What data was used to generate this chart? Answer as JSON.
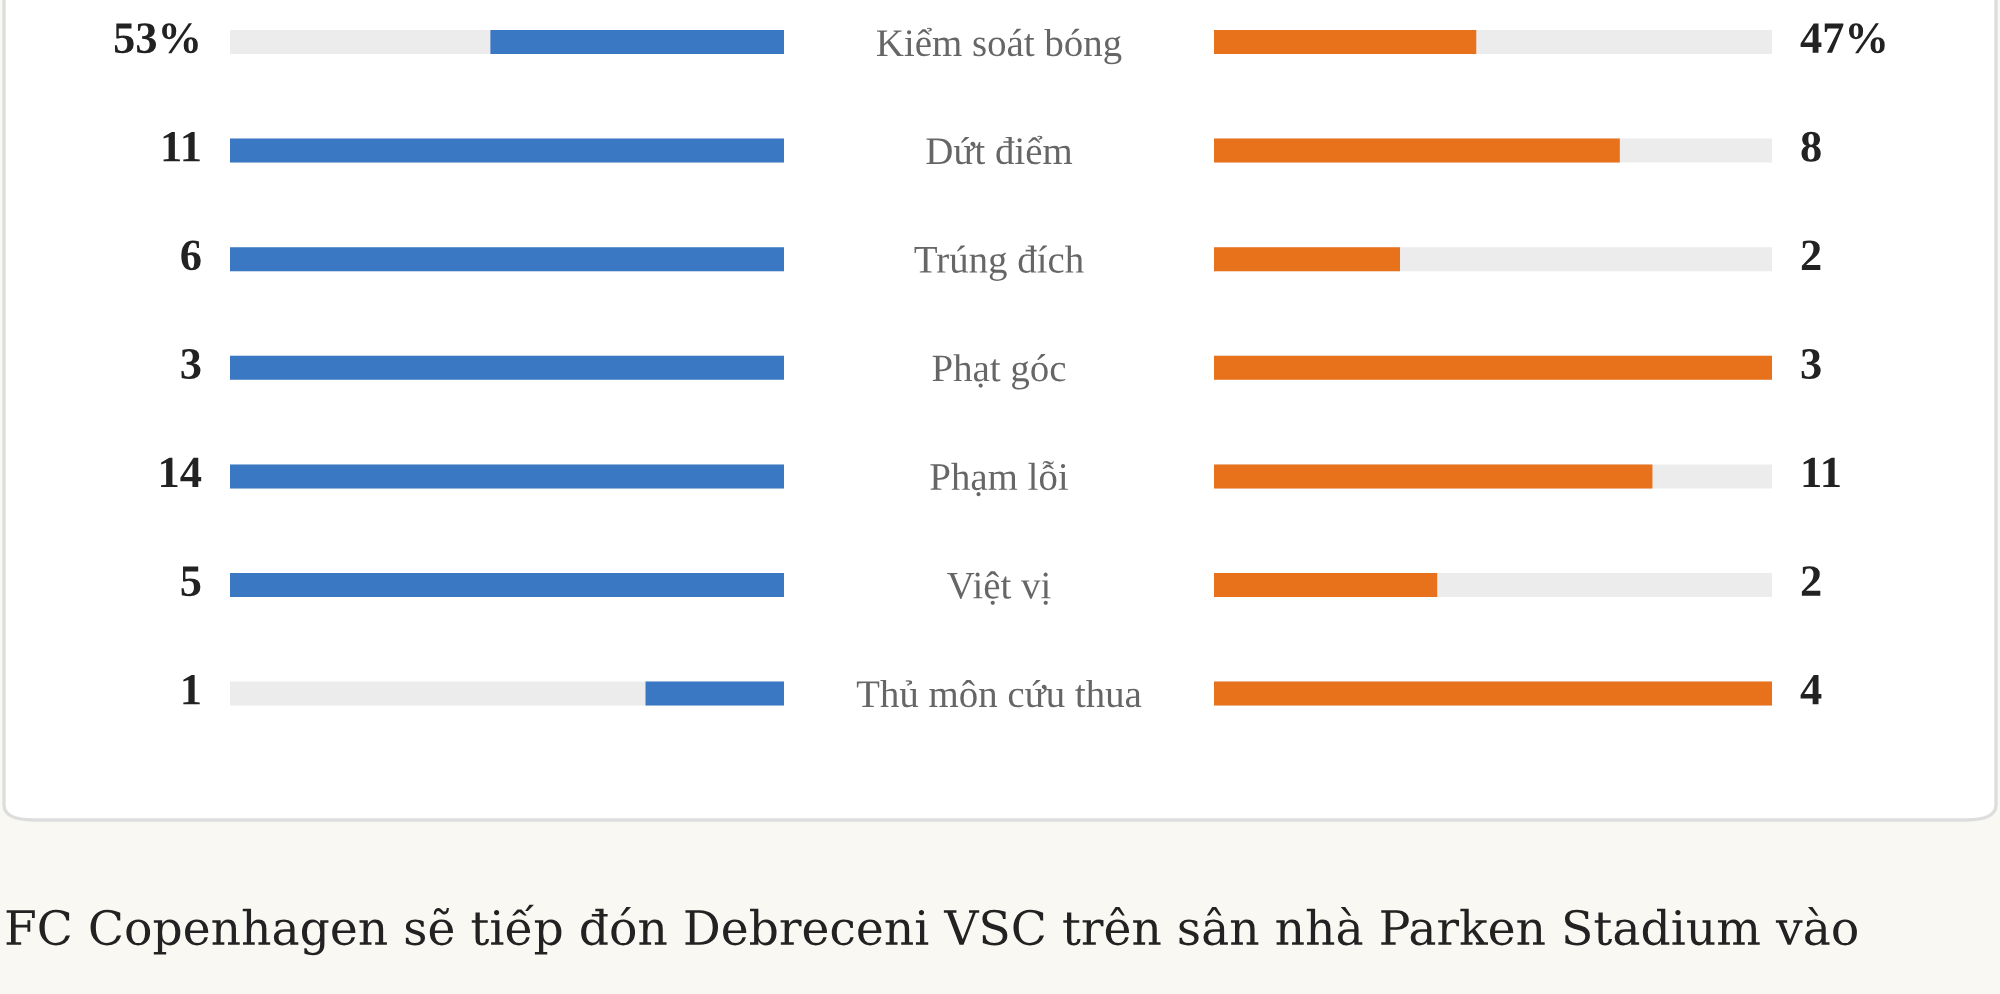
{
  "chart_data": [
    {
      "type": "other",
      "categories": [
        "Kiểm soát bóng"
      ],
      "series": [
        {
          "color": "#3a78c3",
          "values": [
            53
          ],
          "value_labels": [
            "53%"
          ]
        },
        {
          "color": "#e8711c",
          "values": [
            47
          ],
          "value_labels": [
            "47%"
          ]
        }
      ]
    },
    {
      "type": "other",
      "categories": [
        "Dứt điểm",
        "Trúng đích",
        "Phạt góc",
        "Phạm lỗi",
        "Việt vị",
        "Thủ môn cứu thua"
      ],
      "data_labels": true,
      "series": [
        {
          "color": "#3a78c3",
          "values": [
            11,
            6,
            3,
            14,
            5,
            1
          ]
        },
        {
          "color": "#e8711c",
          "values": [
            8,
            2,
            3,
            11,
            2,
            4
          ]
        }
      ],
      "annotations": [
        "FC Copenhagen sẽ tiếp đón Debreceni VSC trên sân nhà Parken Stadium vào"
      ]
    }
  ]
}
